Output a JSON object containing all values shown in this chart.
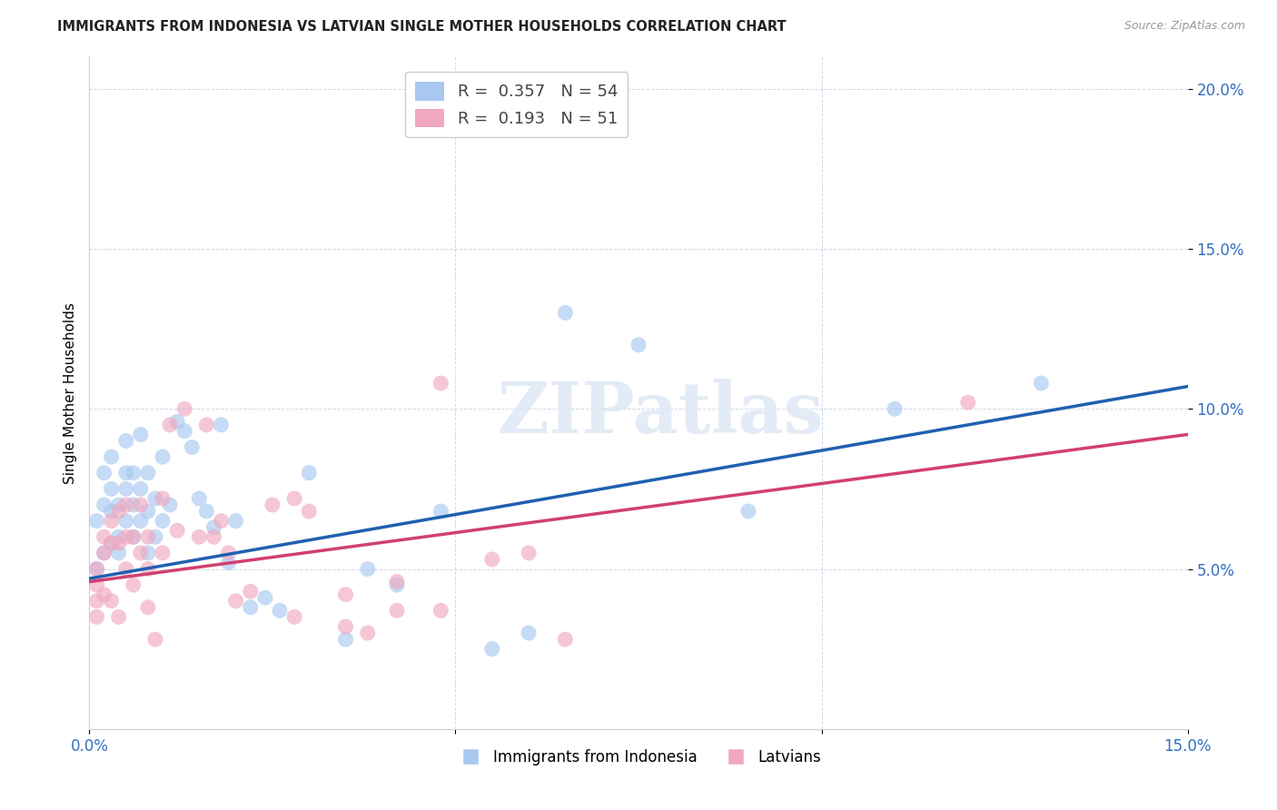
{
  "title": "IMMIGRANTS FROM INDONESIA VS LATVIAN SINGLE MOTHER HOUSEHOLDS CORRELATION CHART",
  "source": "Source: ZipAtlas.com",
  "ylabel_label": "Single Mother Households",
  "x_min": 0.0,
  "x_max": 0.15,
  "y_min": 0.0,
  "y_max": 0.21,
  "x_ticks": [
    0.0,
    0.05,
    0.1,
    0.15
  ],
  "x_tick_labels": [
    "0.0%",
    "",
    "",
    "15.0%"
  ],
  "y_ticks": [
    0.05,
    0.1,
    0.15,
    0.2
  ],
  "y_tick_labels": [
    "5.0%",
    "10.0%",
    "15.0%",
    "20.0%"
  ],
  "blue_color": "#a8c8f0",
  "pink_color": "#f0a8c0",
  "blue_line_color": "#2060b0",
  "pink_line_color": "#d04070",
  "blue_R": 0.357,
  "blue_N": 54,
  "pink_R": 0.193,
  "pink_N": 51,
  "watermark": "ZIPatlas",
  "legend_label_blue": "Immigrants from Indonesia",
  "legend_label_pink": "Latvians",
  "blue_x": [
    0.001,
    0.001,
    0.002,
    0.002,
    0.002,
    0.003,
    0.003,
    0.003,
    0.003,
    0.004,
    0.004,
    0.004,
    0.005,
    0.005,
    0.005,
    0.005,
    0.006,
    0.006,
    0.006,
    0.007,
    0.007,
    0.007,
    0.008,
    0.008,
    0.008,
    0.009,
    0.009,
    0.01,
    0.01,
    0.011,
    0.012,
    0.013,
    0.014,
    0.015,
    0.016,
    0.017,
    0.018,
    0.019,
    0.02,
    0.022,
    0.024,
    0.026,
    0.03,
    0.035,
    0.038,
    0.042,
    0.048,
    0.055,
    0.06,
    0.065,
    0.075,
    0.09,
    0.11,
    0.13
  ],
  "blue_y": [
    0.05,
    0.065,
    0.055,
    0.07,
    0.08,
    0.058,
    0.068,
    0.075,
    0.085,
    0.06,
    0.07,
    0.055,
    0.065,
    0.075,
    0.08,
    0.09,
    0.06,
    0.07,
    0.08,
    0.065,
    0.075,
    0.092,
    0.055,
    0.068,
    0.08,
    0.06,
    0.072,
    0.065,
    0.085,
    0.07,
    0.096,
    0.093,
    0.088,
    0.072,
    0.068,
    0.063,
    0.095,
    0.052,
    0.065,
    0.038,
    0.041,
    0.037,
    0.08,
    0.028,
    0.05,
    0.045,
    0.068,
    0.025,
    0.03,
    0.13,
    0.12,
    0.068,
    0.1,
    0.108
  ],
  "pink_x": [
    0.001,
    0.001,
    0.001,
    0.002,
    0.002,
    0.002,
    0.003,
    0.003,
    0.003,
    0.004,
    0.004,
    0.004,
    0.005,
    0.005,
    0.005,
    0.006,
    0.006,
    0.007,
    0.007,
    0.008,
    0.008,
    0.008,
    0.009,
    0.01,
    0.01,
    0.011,
    0.012,
    0.013,
    0.015,
    0.016,
    0.017,
    0.018,
    0.019,
    0.02,
    0.022,
    0.025,
    0.028,
    0.03,
    0.035,
    0.038,
    0.042,
    0.048,
    0.055,
    0.06,
    0.065,
    0.028,
    0.035,
    0.042,
    0.048,
    0.12,
    0.001
  ],
  "pink_y": [
    0.05,
    0.045,
    0.04,
    0.06,
    0.055,
    0.042,
    0.065,
    0.058,
    0.04,
    0.068,
    0.058,
    0.035,
    0.06,
    0.07,
    0.05,
    0.045,
    0.06,
    0.07,
    0.055,
    0.06,
    0.05,
    0.038,
    0.028,
    0.072,
    0.055,
    0.095,
    0.062,
    0.1,
    0.06,
    0.095,
    0.06,
    0.065,
    0.055,
    0.04,
    0.043,
    0.07,
    0.035,
    0.068,
    0.042,
    0.03,
    0.037,
    0.108,
    0.053,
    0.055,
    0.028,
    0.072,
    0.032,
    0.046,
    0.037,
    0.102,
    0.035
  ],
  "blue_line_x0": 0.0,
  "blue_line_y0": 0.047,
  "blue_line_x1": 0.15,
  "blue_line_y1": 0.107,
  "pink_line_x0": 0.0,
  "pink_line_y0": 0.046,
  "pink_line_x1": 0.15,
  "pink_line_y1": 0.092
}
